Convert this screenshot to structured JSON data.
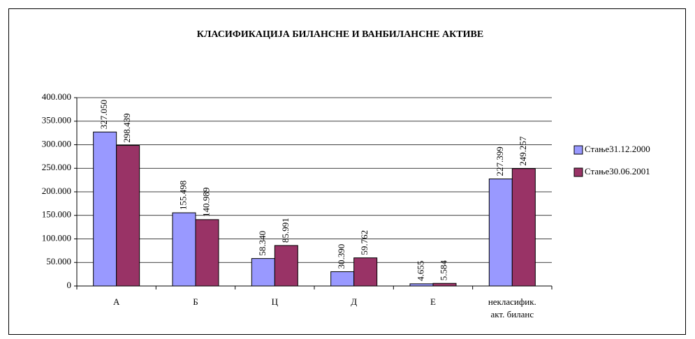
{
  "chart_data": {
    "type": "bar",
    "title": "КЛАСИФИКАЦИЈА БИЛАНСНЕ И ВАНБИЛАНСНЕ АКТИВЕ",
    "categories": [
      "А",
      "Б",
      "Ц",
      "Д",
      "Е",
      "некласифик. акт. биланс"
    ],
    "series": [
      {
        "name": "Стање31.12.2000",
        "color": "#9999ff",
        "values": [
          327050,
          155498,
          58340,
          30390,
          4655,
          227399
        ],
        "value_labels": [
          "327.050",
          "155.498",
          "58.340",
          "30.390",
          "4.655",
          "227.399"
        ]
      },
      {
        "name": "Стање30.06.2001",
        "color": "#993366",
        "values": [
          298439,
          140989,
          85991,
          59762,
          5584,
          249257
        ],
        "value_labels": [
          "298.439",
          "140.989",
          "85.991",
          "59.762",
          "5.584",
          "249.257"
        ]
      }
    ],
    "ylim": [
      0,
      400000
    ],
    "yticks": [
      0,
      {
        "value": 50000,
        "label": "50.000"
      },
      {
        "value": 100000,
        "label": "100.000"
      },
      {
        "value": 150000,
        "label": "150.000"
      },
      {
        "value": 200000,
        "label": "200.000"
      },
      {
        "value": 250000,
        "label": "250.000"
      },
      {
        "value": 300000,
        "label": "300.000"
      },
      {
        "value": 350000,
        "label": "350.000"
      },
      {
        "value": 400000,
        "label": "400.000"
      }
    ],
    "grid": true,
    "legend": "right"
  }
}
